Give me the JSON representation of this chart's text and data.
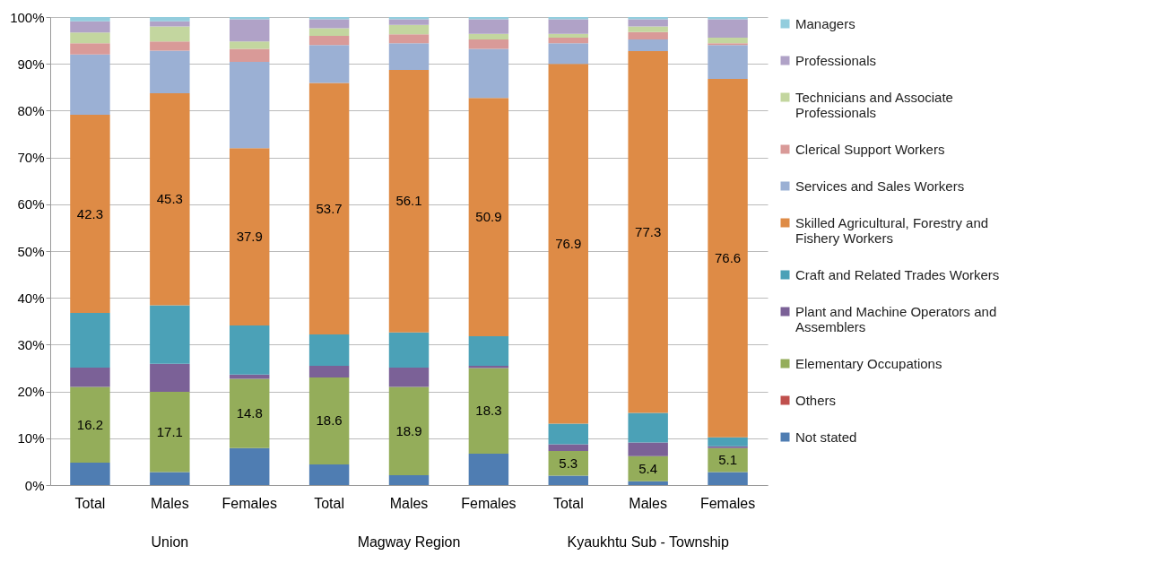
{
  "chart_data": {
    "type": "bar",
    "stacked": true,
    "categories": [
      "Total",
      "Males",
      "Females",
      "Total",
      "Males",
      "Females",
      "Total",
      "Males",
      "Females"
    ],
    "annotations": [
      "Union",
      "Magway Region",
      "Kyaukhtu Sub - Township"
    ],
    "ylim": [
      0,
      100
    ],
    "yticks": [
      {
        "value": 0,
        "label": "0%"
      },
      {
        "value": 10,
        "label": "10%"
      },
      {
        "value": 20,
        "label": "20%"
      },
      {
        "value": 30,
        "label": "30%"
      },
      {
        "value": 40,
        "label": "40%"
      },
      {
        "value": 50,
        "label": "50%"
      },
      {
        "value": 60,
        "label": "60%"
      },
      {
        "value": 70,
        "label": "70%"
      },
      {
        "value": 80,
        "label": "80%"
      },
      {
        "value": 90,
        "label": "90%"
      },
      {
        "value": 100,
        "label": "100%"
      }
    ],
    "grid": "y",
    "legend": "right",
    "series": [
      {
        "name": "Not stated",
        "color": "#4f7db2",
        "values": [
          4.8,
          2.8,
          7.9,
          4.4,
          2.1,
          6.7,
          2.0,
          0.8,
          2.8
        ]
      },
      {
        "name": "Others",
        "color": "#c0504d",
        "values": [
          0,
          0,
          0,
          0,
          0,
          0,
          0,
          0,
          0
        ]
      },
      {
        "name": "Elementary Occupations",
        "color": "#94ad5a",
        "values": [
          16.2,
          17.1,
          14.8,
          18.6,
          18.9,
          18.3,
          5.3,
          5.4,
          5.1
        ],
        "value_labels": [
          "16.2",
          "17.1",
          "14.8",
          "18.6",
          "18.9",
          "18.3",
          "5.3",
          "5.4",
          "5.1"
        ]
      },
      {
        "name": "Plant and Machine Operators and Assemblers",
        "color": "#7b6197",
        "values": [
          4.1,
          6.0,
          0.9,
          2.5,
          4.1,
          0.5,
          1.4,
          2.9,
          0.4
        ]
      },
      {
        "name": "Craft and Related Trades Workers",
        "color": "#4ba1b7",
        "values": [
          11.7,
          12.5,
          10.5,
          6.7,
          7.5,
          6.3,
          4.4,
          6.3,
          1.9
        ]
      },
      {
        "name": "Skilled Agricultural, Forestry and Fishery Workers",
        "color": "#de8b46",
        "values": [
          42.3,
          45.3,
          37.9,
          53.7,
          56.1,
          50.9,
          76.9,
          77.3,
          76.6
        ],
        "value_labels": [
          "42.3",
          "45.3",
          "37.9",
          "53.7",
          "56.1",
          "50.9",
          "76.9",
          "77.3",
          "76.6"
        ]
      },
      {
        "name": "Services and Sales Workers",
        "color": "#9bb0d4",
        "values": [
          12.9,
          9.1,
          18.4,
          8.1,
          5.7,
          10.5,
          4.4,
          2.5,
          7.2
        ]
      },
      {
        "name": "Clerical Support Workers",
        "color": "#d99a98",
        "values": [
          2.4,
          2.0,
          2.8,
          2.0,
          1.9,
          2.0,
          1.2,
          1.6,
          0.4
        ]
      },
      {
        "name": "Technicians and Associate Professionals",
        "color": "#c3d69f",
        "values": [
          2.3,
          3.2,
          1.6,
          1.6,
          2.0,
          1.2,
          0.8,
          1.2,
          1.2
        ]
      },
      {
        "name": "Professionals",
        "color": "#b0a2c7",
        "values": [
          2.4,
          1.1,
          4.7,
          1.9,
          1.2,
          3.1,
          3.1,
          1.5,
          3.9
        ]
      },
      {
        "name": "Managers",
        "color": "#93cddd",
        "values": [
          0.9,
          0.9,
          0.5,
          0.5,
          0.5,
          0.5,
          0.5,
          0.5,
          0.5
        ]
      }
    ]
  }
}
